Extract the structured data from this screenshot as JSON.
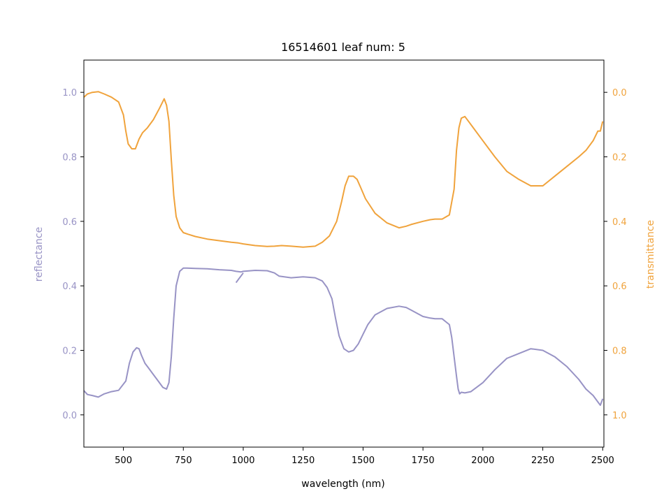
{
  "chart_data": {
    "type": "line",
    "title": "16514601 leaf num: 5",
    "xlabel": "wavelength (nm)",
    "ylabel_left": "reflectance",
    "ylabel_right": "transmittance",
    "xlim": [
      335,
      2505
    ],
    "ylim_left": [
      -0.1,
      1.1
    ],
    "ylim_right": [
      1.1,
      -0.1
    ],
    "right_axis_inverted": true,
    "x_ticks": [
      500,
      750,
      1000,
      1250,
      1500,
      1750,
      2000,
      2250,
      2500
    ],
    "x_tick_labels": [
      "500",
      "750",
      "1000",
      "1250",
      "1500",
      "1750",
      "2000",
      "2250",
      "2500"
    ],
    "y_left_ticks": [
      0.0,
      0.2,
      0.4,
      0.6,
      0.8,
      1.0
    ],
    "y_left_tick_labels": [
      "0.0",
      "0.2",
      "0.4",
      "0.6",
      "0.8",
      "1.0"
    ],
    "y_right_ticks": [
      0.0,
      0.2,
      0.4,
      0.6,
      0.8,
      1.0
    ],
    "y_right_tick_labels": [
      "0.0",
      "0.2",
      "0.4",
      "0.6",
      "0.8",
      "1.0"
    ],
    "grid": false,
    "colors": {
      "reflectance": "#9893c5",
      "transmittance": "#f0a33c"
    },
    "series": [
      {
        "axis": "left",
        "x": [
          335,
          350,
          370,
          395,
          420,
          450,
          480,
          510,
          525,
          540,
          555,
          565,
          575,
          590,
          605,
          625,
          645,
          665,
          680,
          690,
          700,
          710,
          720,
          735,
          750,
          765,
          800,
          850,
          900,
          950,
          970,
          990,
          1000,
          1050,
          1100,
          1130,
          1150,
          1200,
          1250,
          1300,
          1330,
          1350,
          1370,
          1385,
          1400,
          1420,
          1440,
          1460,
          1480,
          1500,
          1520,
          1550,
          1600,
          1650,
          1680,
          1700,
          1750,
          1780,
          1800,
          1830,
          1860,
          1870,
          1880,
          1890,
          1897,
          1903,
          1910,
          1925,
          1950,
          2000,
          2050,
          2100,
          2150,
          2200,
          2250,
          2300,
          2350,
          2400,
          2430,
          2460,
          2480,
          2490,
          2500
        ],
        "y": [
          0.075,
          0.063,
          0.06,
          0.055,
          0.065,
          0.072,
          0.076,
          0.105,
          0.16,
          0.195,
          0.208,
          0.205,
          0.185,
          0.16,
          0.145,
          0.125,
          0.105,
          0.085,
          0.08,
          0.1,
          0.18,
          0.3,
          0.4,
          0.445,
          0.455,
          0.455,
          0.454,
          0.453,
          0.45,
          0.448,
          0.445,
          0.443,
          0.445,
          0.448,
          0.447,
          0.44,
          0.43,
          0.425,
          0.428,
          0.425,
          0.415,
          0.395,
          0.36,
          0.3,
          0.245,
          0.205,
          0.195,
          0.2,
          0.22,
          0.25,
          0.28,
          0.31,
          0.33,
          0.337,
          0.333,
          0.325,
          0.305,
          0.3,
          0.298,
          0.298,
          0.28,
          0.24,
          0.18,
          0.12,
          0.08,
          0.065,
          0.07,
          0.068,
          0.072,
          0.1,
          0.14,
          0.175,
          0.19,
          0.205,
          0.2,
          0.18,
          0.15,
          0.11,
          0.08,
          0.06,
          0.04,
          0.03,
          0.05
        ]
      },
      {
        "axis": "left",
        "x": [
          970,
          980,
          990,
          1000
        ],
        "y": [
          0.41,
          0.42,
          0.43,
          0.44
        ]
      },
      {
        "axis": "right",
        "x": [
          335,
          350,
          370,
          395,
          420,
          450,
          480,
          500,
          510,
          520,
          535,
          550,
          565,
          580,
          600,
          625,
          650,
          670,
          680,
          690,
          700,
          710,
          720,
          735,
          750,
          770,
          800,
          850,
          900,
          950,
          980,
          1000,
          1050,
          1100,
          1130,
          1160,
          1200,
          1250,
          1300,
          1330,
          1360,
          1390,
          1410,
          1425,
          1440,
          1460,
          1475,
          1490,
          1510,
          1550,
          1600,
          1650,
          1680,
          1700,
          1750,
          1780,
          1800,
          1830,
          1860,
          1880,
          1890,
          1900,
          1910,
          1925,
          1940,
          1960,
          1990,
          2050,
          2100,
          2150,
          2200,
          2250,
          2300,
          2350,
          2400,
          2430,
          2460,
          2480,
          2490,
          2500
        ],
        "y": [
          0.015,
          0.005,
          0.0,
          -0.002,
          0.005,
          0.015,
          0.03,
          0.07,
          0.12,
          0.16,
          0.175,
          0.175,
          0.145,
          0.125,
          0.11,
          0.085,
          0.05,
          0.02,
          0.04,
          0.09,
          0.21,
          0.32,
          0.385,
          0.42,
          0.435,
          0.44,
          0.447,
          0.455,
          0.46,
          0.465,
          0.467,
          0.47,
          0.475,
          0.478,
          0.477,
          0.475,
          0.477,
          0.48,
          0.477,
          0.465,
          0.445,
          0.4,
          0.34,
          0.29,
          0.26,
          0.26,
          0.27,
          0.295,
          0.33,
          0.375,
          0.405,
          0.42,
          0.415,
          0.41,
          0.4,
          0.395,
          0.393,
          0.393,
          0.38,
          0.3,
          0.18,
          0.11,
          0.08,
          0.075,
          0.09,
          0.11,
          0.14,
          0.2,
          0.245,
          0.27,
          0.29,
          0.29,
          0.26,
          0.23,
          0.2,
          0.18,
          0.15,
          0.12,
          0.12,
          0.09
        ]
      }
    ]
  }
}
